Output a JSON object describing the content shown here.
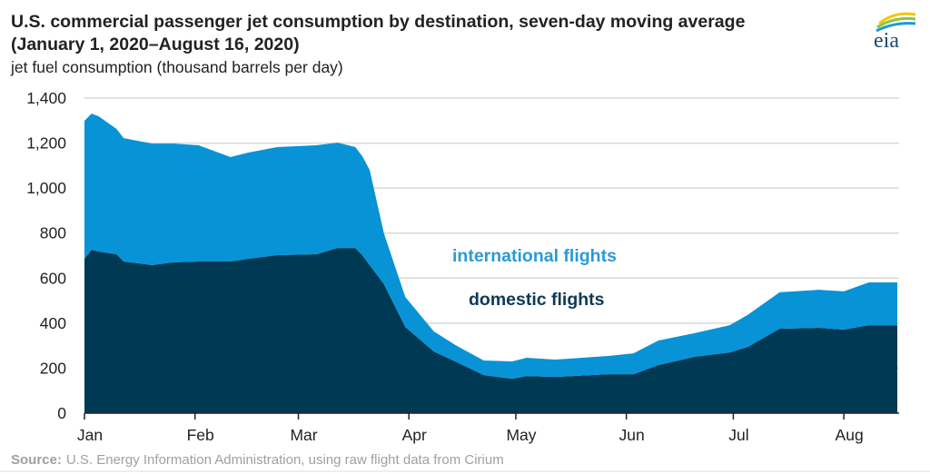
{
  "chart_data": {
    "type": "area",
    "stacked": true,
    "title": "U.S. commercial passenger jet consumption by destination, seven-day moving average",
    "subtitle": "(January 1, 2020–August 16, 2020)",
    "ylabel": "jet fuel consumption (thousand barrels per day)",
    "xlabel": "",
    "ylim": [
      0,
      1400
    ],
    "yticks": [
      "0",
      "200",
      "400",
      "600",
      "800",
      "1,000",
      "1,200",
      "1,400"
    ],
    "ytick_values": [
      0,
      200,
      400,
      600,
      800,
      1000,
      1200,
      1400
    ],
    "xlim": [
      "2020-01-01",
      "2020-08-16"
    ],
    "xticks": [
      {
        "label": "Jan",
        "date": "2020-01-01"
      },
      {
        "label": "Feb",
        "date": "2020-02-01"
      },
      {
        "label": "Mar",
        "date": "2020-03-01"
      },
      {
        "label": "Apr",
        "date": "2020-04-01"
      },
      {
        "label": "May",
        "date": "2020-05-01"
      },
      {
        "label": "Jun",
        "date": "2020-06-01"
      },
      {
        "label": "Jul",
        "date": "2020-07-01"
      },
      {
        "label": "Aug",
        "date": "2020-08-01"
      }
    ],
    "grid": true,
    "x": [
      "2020-01-01",
      "2020-01-03",
      "2020-01-05",
      "2020-01-10",
      "2020-01-12",
      "2020-01-20",
      "2020-01-26",
      "2020-02-02",
      "2020-02-11",
      "2020-02-16",
      "2020-02-24",
      "2020-03-06",
      "2020-03-12",
      "2020-03-17",
      "2020-03-19",
      "2020-03-21",
      "2020-03-25",
      "2020-03-31",
      "2020-04-08",
      "2020-04-14",
      "2020-04-22",
      "2020-04-30",
      "2020-05-04",
      "2020-05-12",
      "2020-05-27",
      "2020-06-03",
      "2020-06-10",
      "2020-06-20",
      "2020-06-30",
      "2020-07-05",
      "2020-07-14",
      "2020-07-25",
      "2020-08-01",
      "2020-08-08",
      "2020-08-16"
    ],
    "series": [
      {
        "name": "domestic flights",
        "color": "#003953",
        "values": [
          686,
          726,
          718,
          706,
          674,
          658,
          670,
          674,
          674,
          686,
          702,
          706,
          734,
          734,
          700,
          658,
          573,
          383,
          274,
          230,
          169,
          153,
          165,
          161,
          173,
          173,
          214,
          250,
          270,
          294,
          375,
          379,
          371,
          391,
          391
        ]
      },
      {
        "name": "international flights",
        "color": "#0793d6",
        "values": [
          613,
          605,
          601,
          557,
          548,
          540,
          528,
          516,
          464,
          472,
          480,
          484,
          468,
          448,
          440,
          423,
          226,
          133,
          89,
          73,
          65,
          77,
          81,
          77,
          81,
          93,
          109,
          105,
          121,
          142,
          162,
          169,
          170,
          190,
          190
        ]
      }
    ],
    "series_label_colors": {
      "domestic": "#0d3a55",
      "international": "#2b9bd5"
    },
    "source_label": "Source:",
    "source_text": "U.S. Energy Information Administration, using raw flight data from Cirium"
  },
  "logo": {
    "text": "eia"
  }
}
